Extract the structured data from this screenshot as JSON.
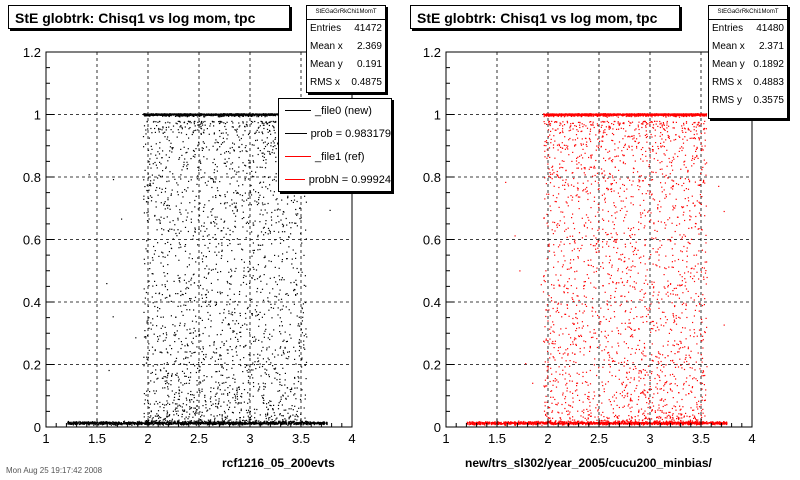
{
  "footer": "Mon Aug 25 19:17:42 2008",
  "panels": [
    {
      "title": "StE globtrk: Chisq1 vs log mom, tpc",
      "stats_name": "StEGaGrRkChi1MomT",
      "stats": [
        {
          "label": "Entries",
          "value": "41472"
        },
        {
          "label": "Mean x",
          "value": "2.369"
        },
        {
          "label": "Mean y",
          "value": "0.191"
        },
        {
          "label": "RMS x",
          "value": "0.4875"
        }
      ],
      "legend": [
        {
          "label": "_file0 (new)",
          "color": "#000000"
        },
        {
          "label": "prob = 0.983179",
          "color": "#000000"
        },
        {
          "label": "_file1 (ref)",
          "color": "#ff0000"
        },
        {
          "label": "probN = 0.99924",
          "color": "#ff0000"
        }
      ],
      "xlabel": "rcf1216_05_200evts"
    },
    {
      "title": "StE globtrk: Chisq1 vs log mom, tpc",
      "stats_name": "StEGaGrRkChi1MomT",
      "stats": [
        {
          "label": "Entries",
          "value": "41480"
        },
        {
          "label": "Mean x",
          "value": "2.371"
        },
        {
          "label": "Mean y",
          "value": "0.1892"
        },
        {
          "label": "RMS x",
          "value": "0.4883"
        },
        {
          "label": "RMS y",
          "value": "0.3575"
        }
      ],
      "xlabel": "new/trs_sl302/year_2005/cucu200_minbias/"
    }
  ],
  "chart_data": [
    {
      "type": "scatter",
      "title": "StE globtrk: Chisq1 vs log mom, tpc",
      "xlabel": "rcf1216_05_200evts",
      "ylabel": "",
      "xlim": [
        1,
        4
      ],
      "ylim": [
        0,
        1.2
      ],
      "x_ticks": [
        "1",
        "1.5",
        "2",
        "2.5",
        "3",
        "3.5",
        "4"
      ],
      "y_ticks": [
        "0",
        "0.2",
        "0.4",
        "0.6",
        "0.8",
        "1",
        "1.2"
      ],
      "grid": true,
      "color": "#000000",
      "entries": 41472,
      "mean_x": 2.369,
      "mean_y": 0.191,
      "rms_x": 0.4875,
      "distribution": {
        "bands": [
          {
            "y": 1.0,
            "x_range": [
              1.95,
              3.55
            ]
          },
          {
            "y": 0.01,
            "x_range": [
              1.2,
              3.75
            ]
          }
        ],
        "scatter_x_range": [
          1.95,
          3.55
        ],
        "scatter_y_range": [
          0.02,
          0.98
        ]
      }
    },
    {
      "type": "scatter",
      "title": "StE globtrk: Chisq1 vs log mom, tpc",
      "xlabel": "new/trs_sl302/year_2005/cucu200_minbias/",
      "ylabel": "",
      "xlim": [
        1,
        4
      ],
      "ylim": [
        0,
        1.2
      ],
      "x_ticks": [
        "1",
        "1.5",
        "2",
        "2.5",
        "3",
        "3.5",
        "4"
      ],
      "y_ticks": [
        "0",
        "0.2",
        "0.4",
        "0.6",
        "0.8",
        "1",
        "1.2"
      ],
      "grid": true,
      "color": "#ff0000",
      "entries": 41480,
      "mean_x": 2.371,
      "mean_y": 0.1892,
      "rms_x": 0.4883,
      "rms_y": 0.3575,
      "distribution": {
        "bands": [
          {
            "y": 1.0,
            "x_range": [
              1.95,
              3.55
            ]
          },
          {
            "y": 0.01,
            "x_range": [
              1.2,
              3.75
            ]
          }
        ],
        "scatter_x_range": [
          1.95,
          3.55
        ],
        "scatter_y_range": [
          0.02,
          0.98
        ]
      }
    }
  ]
}
